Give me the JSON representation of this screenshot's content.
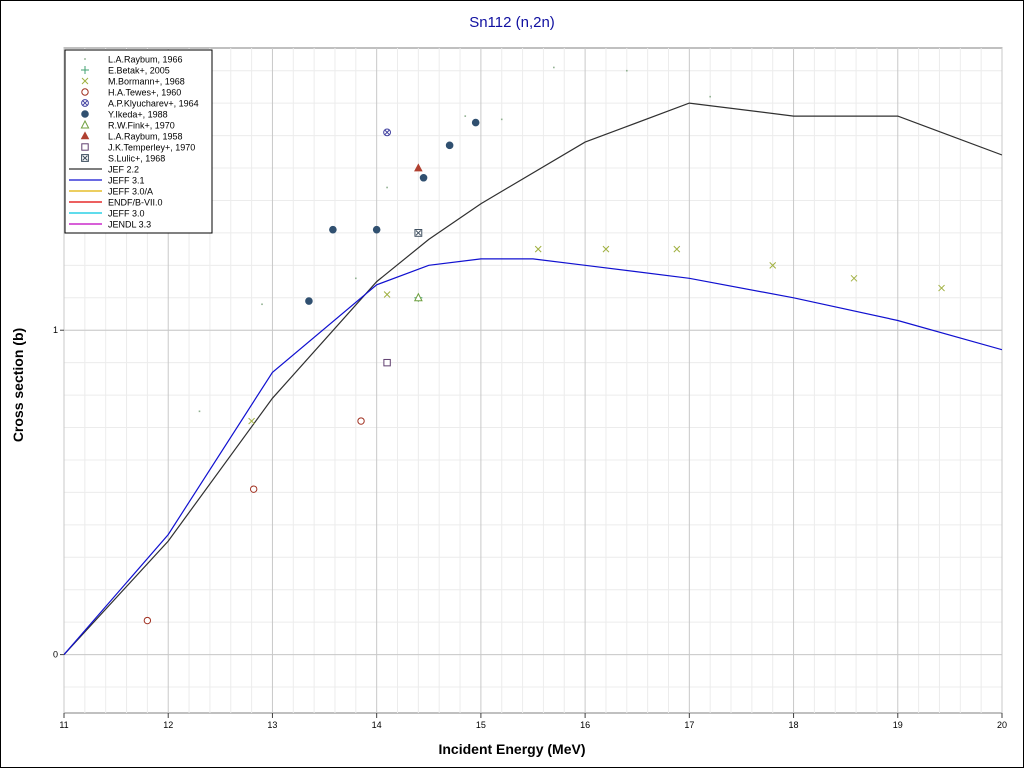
{
  "chart_data": {
    "type": "scatter",
    "title": "Sn112 (n,2n)",
    "xlabel": "Incident Energy (MeV)",
    "ylabel": "Cross section (b)",
    "xlim": [
      11,
      20
    ],
    "xticks": [
      11,
      12,
      13,
      14,
      15,
      16,
      17,
      18,
      19,
      20
    ],
    "ylim": [
      -0.18,
      1.87
    ],
    "yticks": [
      0,
      1
    ],
    "grid": true,
    "legend_position": "top-left",
    "series": [
      {
        "name": "L.A.Raybum, 1966",
        "kind": "points",
        "marker": "dot",
        "color": "#90b090",
        "x": [
          12.3,
          12.9,
          13.8,
          14.1,
          14.85,
          15.2,
          15.7,
          16.4,
          17.2
        ],
        "y": [
          0.75,
          1.08,
          1.16,
          1.44,
          1.66,
          1.65,
          1.81,
          1.8,
          1.72
        ]
      },
      {
        "name": "E.Betak+, 2005",
        "kind": "points",
        "marker": "plus",
        "color": "#40a070",
        "x": [
          14.4
        ],
        "y": [
          1.1
        ]
      },
      {
        "name": "M.Bormann+, 1968",
        "kind": "points",
        "marker": "cross",
        "color": "#a0b040",
        "x": [
          12.8,
          14.1,
          15.55,
          16.2,
          16.88,
          17.8,
          18.58,
          19.42
        ],
        "y": [
          0.72,
          1.11,
          1.25,
          1.25,
          1.25,
          1.2,
          1.16,
          1.13
        ]
      },
      {
        "name": "H.A.Tewes+, 1960",
        "kind": "points",
        "marker": "hollow-circle",
        "color": "#a03020",
        "x": [
          11.8,
          12.82,
          13.85
        ],
        "y": [
          0.105,
          0.51,
          0.72
        ]
      },
      {
        "name": "A.P.Klyucharev+, 1964",
        "kind": "points",
        "marker": "hatched-circle",
        "color": "#4040a0",
        "x": [
          14.1
        ],
        "y": [
          1.61
        ]
      },
      {
        "name": "Y.Ikeda+, 1988",
        "kind": "points",
        "marker": "filled-circle",
        "color": "#305070",
        "x": [
          13.35,
          13.58,
          14.0,
          14.45,
          14.7,
          14.95
        ],
        "y": [
          1.09,
          1.31,
          1.31,
          1.47,
          1.57,
          1.64
        ]
      },
      {
        "name": "R.W.Fink+, 1970",
        "kind": "points",
        "marker": "hollow-triangle",
        "color": "#70a040",
        "x": [
          14.4
        ],
        "y": [
          1.1
        ]
      },
      {
        "name": "L.A.Raybum, 1958",
        "kind": "points",
        "marker": "filled-triangle",
        "color": "#b04030",
        "x": [
          14.4
        ],
        "y": [
          1.5
        ]
      },
      {
        "name": "J.K.Temperley+, 1970",
        "kind": "points",
        "marker": "hollow-square",
        "color": "#604070",
        "x": [
          14.1
        ],
        "y": [
          0.9
        ]
      },
      {
        "name": "S.Lulic+, 1968",
        "kind": "points",
        "marker": "hatched-square",
        "color": "#405060",
        "x": [
          14.4
        ],
        "y": [
          1.3
        ]
      },
      {
        "name": "JEF 2.2",
        "kind": "line",
        "color": "#303030",
        "x": [
          11,
          12,
          13,
          14,
          14.5,
          15,
          16,
          17,
          18,
          19,
          20
        ],
        "y": [
          0,
          0.35,
          0.79,
          1.15,
          1.28,
          1.39,
          1.58,
          1.7,
          1.66,
          1.66,
          1.54
        ]
      },
      {
        "name": "JEFF 3.1",
        "kind": "line",
        "color": "#1010d0",
        "x": [
          11,
          12,
          13,
          14,
          14.5,
          15,
          15.5,
          16,
          17,
          18,
          19,
          20
        ],
        "y": [
          0,
          0.37,
          0.87,
          1.14,
          1.2,
          1.22,
          1.22,
          1.2,
          1.16,
          1.1,
          1.03,
          0.94
        ]
      },
      {
        "name": "JEFF 3.0/A",
        "kind": "line",
        "color": "#e0b000",
        "x": [],
        "y": []
      },
      {
        "name": "ENDF/B-VII.0",
        "kind": "line",
        "color": "#e00000",
        "x": [],
        "y": []
      },
      {
        "name": "JEFF 3.0",
        "kind": "line",
        "color": "#00c8e0",
        "x": [],
        "y": []
      },
      {
        "name": "JENDL 3.3",
        "kind": "line",
        "color": "#c000c0",
        "x": [],
        "y": []
      }
    ]
  }
}
